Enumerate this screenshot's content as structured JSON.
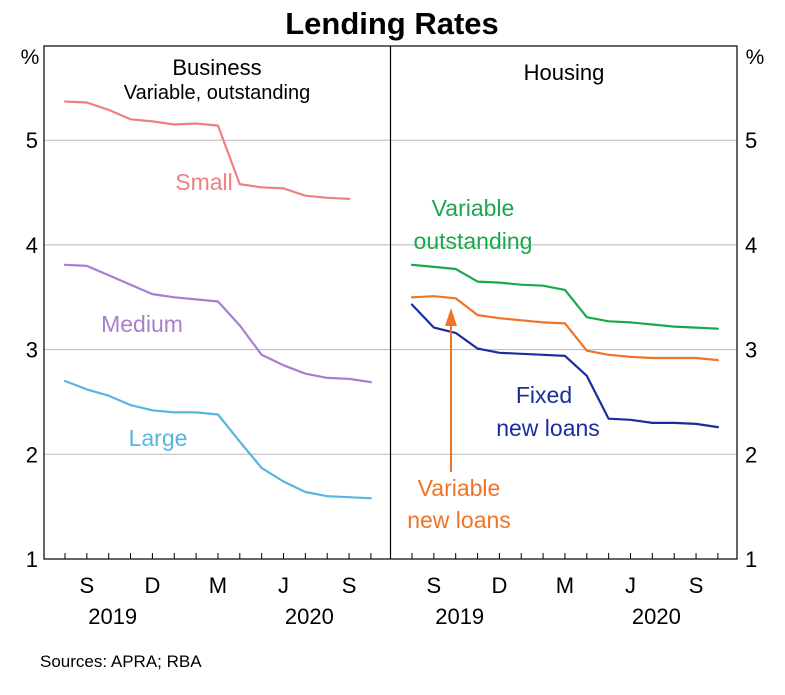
{
  "chart_data": {
    "type": "line",
    "title": "Lending Rates",
    "source": "Sources: APRA; RBA",
    "y_unit": "%",
    "ylim": [
      1,
      5.9
    ],
    "yticks": [
      "1",
      "2",
      "3",
      "4",
      "5"
    ],
    "grid": true,
    "x_months": [
      "2019-08",
      "2019-09",
      "2019-10",
      "2019-11",
      "2019-12",
      "2020-01",
      "2020-02",
      "2020-03",
      "2020-04",
      "2020-05",
      "2020-06",
      "2020-07",
      "2020-08",
      "2020-09",
      "2020-10"
    ],
    "x_tick_labels": [
      "S",
      "D",
      "M",
      "J",
      "S"
    ],
    "x_year_labels": [
      "2019",
      "2020"
    ],
    "panels": [
      {
        "title": "Business",
        "subtitle": "Variable, outstanding",
        "series": [
          {
            "name": "Small",
            "color": "#f08080",
            "start": "2019-08",
            "values": [
              5.37,
              5.36,
              5.29,
              5.2,
              5.18,
              5.15,
              5.16,
              5.14,
              4.58,
              4.55,
              4.54,
              4.47,
              4.45,
              4.44
            ]
          },
          {
            "name": "Medium",
            "color": "#a87fcf",
            "start": "2019-08",
            "values": [
              3.81,
              3.8,
              3.71,
              3.62,
              3.53,
              3.5,
              3.48,
              3.46,
              3.23,
              2.95,
              2.85,
              2.77,
              2.73,
              2.72,
              2.69
            ]
          },
          {
            "name": "Large",
            "color": "#5ab4e0",
            "start": "2019-08",
            "values": [
              2.7,
              2.62,
              2.56,
              2.47,
              2.42,
              2.4,
              2.4,
              2.38,
              2.12,
              1.87,
              1.74,
              1.64,
              1.6,
              1.59,
              1.58
            ]
          }
        ]
      },
      {
        "title": "Housing",
        "subtitle": "",
        "series": [
          {
            "name": "Variable outstanding",
            "label_lines": [
              "Variable",
              "outstanding"
            ],
            "color": "#1aa84c",
            "start": "2019-08",
            "values": [
              3.81,
              3.79,
              3.77,
              3.65,
              3.64,
              3.62,
              3.61,
              3.57,
              3.31,
              3.27,
              3.26,
              3.24,
              3.22,
              3.21,
              3.2
            ]
          },
          {
            "name": "Variable new loans",
            "label_lines": [
              "Variable",
              "new loans"
            ],
            "color": "#f07428",
            "start": "2019-08",
            "values": [
              3.5,
              3.51,
              3.49,
              3.33,
              3.3,
              3.28,
              3.26,
              3.25,
              2.99,
              2.95,
              2.93,
              2.92,
              2.92,
              2.92,
              2.9
            ]
          },
          {
            "name": "Fixed new loans",
            "label_lines": [
              "Fixed",
              "new loans"
            ],
            "color": "#1a2d9c",
            "start": "2019-08",
            "values": [
              3.43,
              3.21,
              3.16,
              3.01,
              2.97,
              2.96,
              2.95,
              2.94,
              2.75,
              2.34,
              2.33,
              2.3,
              2.3,
              2.29,
              2.26
            ]
          }
        ]
      }
    ]
  }
}
